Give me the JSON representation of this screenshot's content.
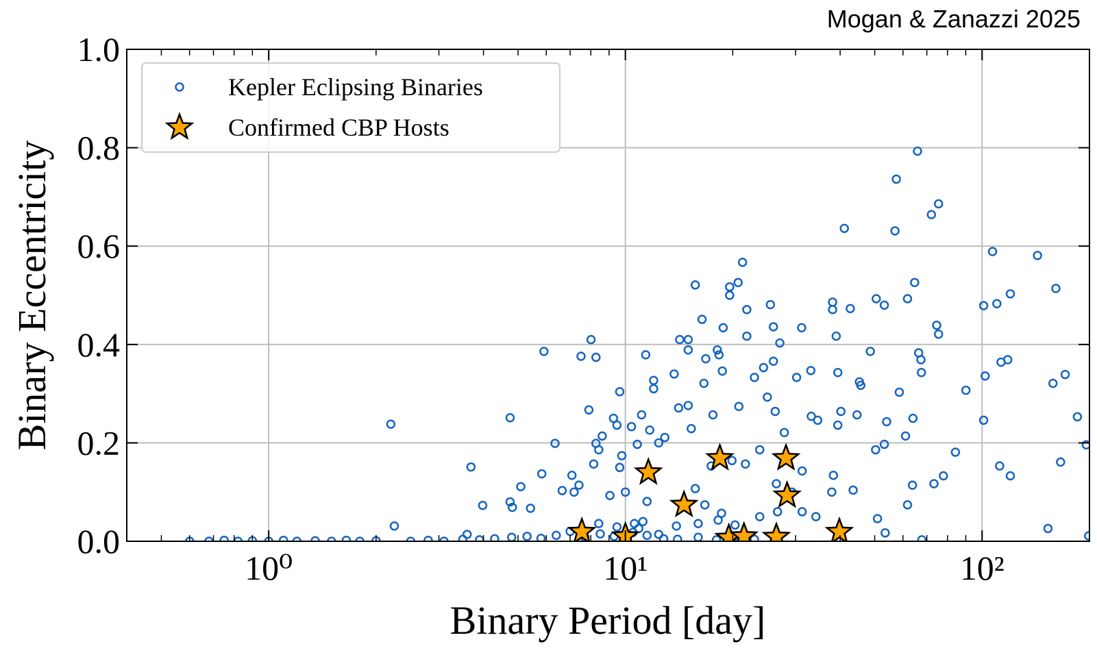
{
  "chart_data": {
    "type": "scatter",
    "credit": "Mogan & Zanazzi 2025",
    "xlabel": "Binary Period [day]",
    "ylabel": "Binary Eccentricity",
    "xscale": "log",
    "xlim": [
      0.4,
      200
    ],
    "ylim": [
      0,
      1
    ],
    "xticks": [
      {
        "value": 1,
        "label": "10⁰"
      },
      {
        "value": 10,
        "label": "10¹"
      },
      {
        "value": 100,
        "label": "10²"
      }
    ],
    "xminorticks": [
      0.5,
      0.6,
      0.7,
      0.8,
      0.9,
      2,
      3,
      4,
      5,
      6,
      7,
      8,
      9,
      20,
      30,
      40,
      50,
      60,
      70,
      80,
      90
    ],
    "yticks": [
      {
        "value": 0,
        "label": "0.0"
      },
      0.2,
      0.4,
      0.6,
      0.8,
      {
        "value": 1,
        "label": "1.0"
      }
    ],
    "grid": true,
    "legend": "upper left",
    "series": [
      {
        "name": "Kepler Eclipsing Binaries",
        "color": "#1565c0",
        "marker": "circle",
        "x": [
          0.6,
          0.68,
          0.75,
          0.82,
          0.9,
          1.0,
          1.1,
          1.2,
          1.35,
          1.5,
          1.65,
          1.8,
          2.0,
          2.25,
          2.2,
          2.5,
          2.8,
          3.1,
          3.5,
          3.6,
          3.9,
          4.3,
          4.8,
          5.3,
          5.8,
          6.4,
          7.0,
          7.7,
          8.5,
          9.3,
          10.5,
          11.5,
          12.8,
          14,
          16,
          18,
          20,
          23,
          3.69,
          3.98,
          4.75,
          4.75,
          4.82,
          5.09,
          5.42,
          5.91,
          5.83,
          6.35,
          6.65,
          7.08,
          7.18,
          7.41,
          7.51,
          7.9,
          8.01,
          8.27,
          8.27,
          8.15,
          8.42,
          8.61,
          9.05,
          9.26,
          9.47,
          9.64,
          9.64,
          9.77,
          10,
          10.4,
          10.8,
          11.1,
          11.2,
          11.4,
          11.5,
          11.7,
          12,
          12,
          12.4,
          12.9,
          13.7,
          14.1,
          14.2,
          15,
          15,
          15,
          15.3,
          15.7,
          15.7,
          16.4,
          16.6,
          16.8,
          17.4,
          17.6,
          18.1,
          18.3,
          18.7,
          18.8,
          19.6,
          19.6,
          20.7,
          20.8,
          21.3,
          21.9,
          21.9,
          23,
          24.4,
          25,
          25.5,
          26,
          26,
          26.3,
          27.1,
          27.9,
          30.2,
          31.2,
          33.1,
          33.2,
          34.6,
          38.1,
          38.1,
          39,
          39.4,
          39.4,
          41.1,
          42.7,
          45.3,
          45.7,
          48.6,
          50.5,
          53.2,
          57,
          57.5,
          58.6,
          61.8,
          64.7,
          65.9,
          66.4,
          67.4,
          72.1,
          75.5,
          74.6,
          75.5,
          84.2,
          90.1,
          101,
          101,
          102,
          107,
          110,
          113,
          118,
          120,
          120,
          112,
          143,
          153,
          158,
          161,
          166,
          171,
          185,
          196,
          199,
          8.42,
          9.47,
          10.6,
          10.9,
          12.4,
          13.9,
          16,
          18.2,
          20.3,
          23.8,
          26.7,
          31.3,
          34.2,
          37.9,
          43.5,
          50.9,
          53.5,
          61.8,
          63.8,
          67.8,
          73.3,
          77.9,
          38.3,
          40.2,
          44.6,
          50.3,
          53.2,
          54,
          61,
          64,
          67.6,
          31.3,
          29.3,
          26.5,
          23.8,
          21.7,
          19.9,
          18.6,
          16.7
        ],
        "values": [
          0,
          0,
          0.002,
          0,
          0.001,
          0,
          0.002,
          0,
          0.001,
          0,
          0.002,
          0,
          0.001,
          0.031,
          0.238,
          0,
          0.002,
          0,
          0.004,
          0.014,
          0.003,
          0.005,
          0.008,
          0.01,
          0.006,
          0.012,
          0.02,
          0.008,
          0.015,
          0.01,
          0.018,
          0.012,
          0.005,
          0.004,
          0.008,
          0.003,
          0.006,
          0.004,
          0.151,
          0.073,
          0.251,
          0.08,
          0.069,
          0.111,
          0.067,
          0.386,
          0.137,
          0.199,
          0.103,
          0.134,
          0.1,
          0.114,
          0.376,
          0.267,
          0.41,
          0.374,
          0.199,
          0.157,
          0.186,
          0.214,
          0.093,
          0.25,
          0.236,
          0.304,
          0.15,
          0.174,
          0.1,
          0.233,
          0.197,
          0.257,
          0.04,
          0.379,
          0.081,
          0.226,
          0.327,
          0.31,
          0.2,
          0.211,
          0.34,
          0.271,
          0.41,
          0.41,
          0.389,
          0.276,
          0.229,
          0.107,
          0.521,
          0.451,
          0.321,
          0.371,
          0.153,
          0.257,
          0.389,
          0.379,
          0.346,
          0.434,
          0.517,
          0.5,
          0.526,
          0.274,
          0.567,
          0.471,
          0.417,
          0.333,
          0.353,
          0.293,
          0.481,
          0.436,
          0.366,
          0.264,
          0.403,
          0.221,
          0.333,
          0.434,
          0.347,
          0.254,
          0.246,
          0.486,
          0.471,
          0.417,
          0.343,
          0.236,
          0.636,
          0.473,
          0.324,
          0.317,
          0.386,
          0.493,
          0.48,
          0.631,
          0.736,
          0.303,
          0.493,
          0.526,
          0.793,
          0.383,
          0.369,
          0.664,
          0.686,
          0.439,
          0.421,
          0.181,
          0.307,
          0.479,
          0.246,
          0.336,
          0.589,
          0.483,
          0.364,
          0.369,
          0.503,
          0.133,
          0.153,
          0.581,
          0.026,
          0.321,
          0.514,
          0.161,
          0.339,
          0.253,
          0.196,
          0.011,
          0.036,
          0.029,
          0.036,
          0.026,
          0.014,
          0.031,
          0.036,
          0.043,
          0.033,
          0.05,
          0.06,
          0.06,
          0.05,
          0.1,
          0.104,
          0.046,
          0.017,
          0.074,
          0.114,
          0.003,
          0.117,
          0.133,
          0.134,
          0.264,
          0.257,
          0.186,
          0.197,
          0.243,
          0.214,
          0.25,
          0.343,
          0.143,
          0.1,
          0.117,
          0.186,
          0.157,
          0.164,
          0.057,
          0.074
        ]
      },
      {
        "name": "Confirmed CBP Hosts",
        "color": "#ffa500",
        "marker": "star",
        "x": [
          7.55,
          10,
          11.6,
          14.6,
          18.4,
          19.5,
          21.5,
          26.5,
          28.2,
          28.4,
          39.8
        ],
        "values": [
          0.019,
          0.01,
          0.14,
          0.074,
          0.169,
          0.007,
          0.01,
          0.009,
          0.169,
          0.093,
          0.019
        ]
      }
    ]
  }
}
